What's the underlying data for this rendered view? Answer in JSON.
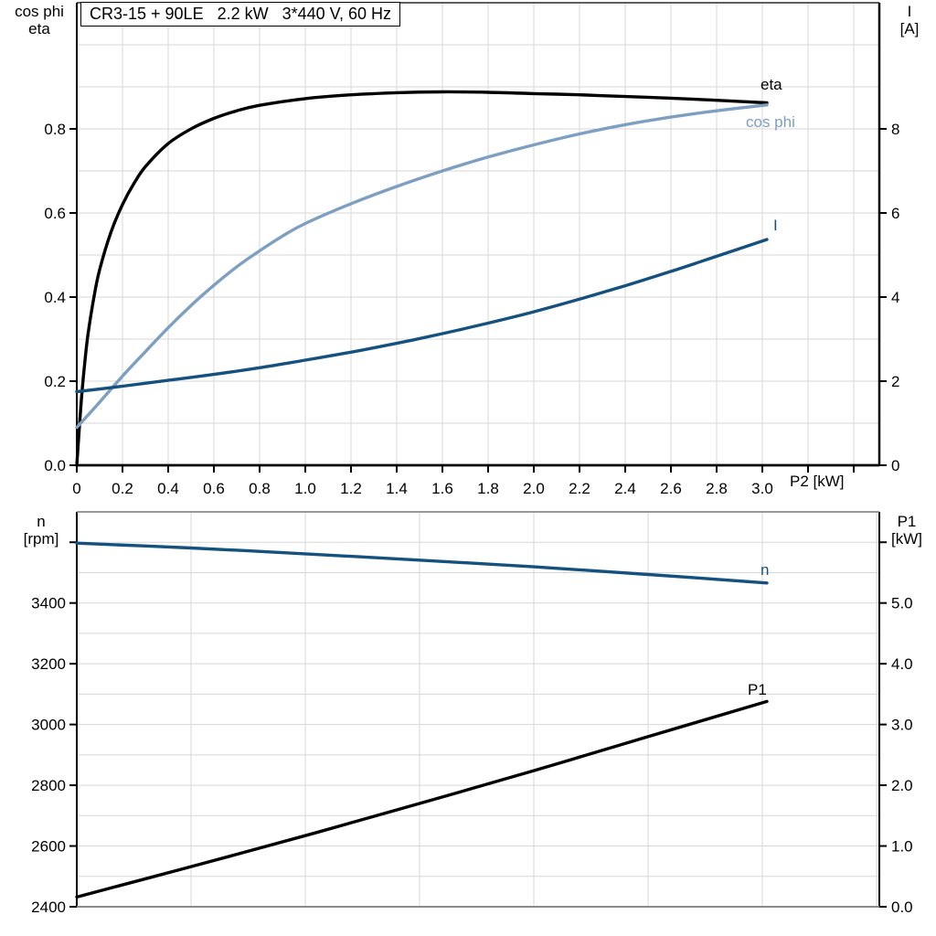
{
  "title_box": {
    "text": "CR3-15 + 90LE   2.2 kW   3*440 V, 60 Hz"
  },
  "colors": {
    "black": "#000000",
    "light_blue": "#7d9fc1",
    "dark_blue": "#15517f",
    "grid": "#d7d7d7",
    "frame": "#000000",
    "frame_gray": "#8a8a8a",
    "text": "#000000"
  },
  "chart_data": [
    {
      "id": "top",
      "type": "line",
      "title": "CR3-15 + 90LE   2.2 kW   3*440 V, 60 Hz",
      "x_axis": {
        "label": "P2 [kW]",
        "min": 0,
        "max": 3.512,
        "tick_values": [
          0,
          0.2,
          0.4,
          0.6,
          0.8,
          1.0,
          1.2,
          1.4,
          1.6,
          1.8,
          2.0,
          2.2,
          2.4,
          2.6,
          2.8,
          3.0,
          3.2,
          3.4
        ],
        "tick_labels": [
          "0",
          "0.2",
          "0.4",
          "0.6",
          "0.8",
          "1.0",
          "1.2",
          "1.4",
          "1.6",
          "1.8",
          "2.0",
          "2.2",
          "2.4",
          "2.6",
          "2.8",
          "3.0",
          "",
          ""
        ],
        "grid_step": 0.2
      },
      "left_axis": {
        "name_lines": [
          "cos phi",
          "eta"
        ],
        "min": 0,
        "max": 1.1,
        "tick_values": [
          0,
          0.2,
          0.4,
          0.6,
          0.8
        ],
        "tick_labels": [
          "0.0",
          "0.2",
          "0.4",
          "0.6",
          "0.8"
        ],
        "grid_step": 0.1
      },
      "right_axis": {
        "name_lines": [
          "I",
          "[A]"
        ],
        "min": 0,
        "max": 11,
        "tick_values": [
          0,
          2,
          4,
          6,
          8
        ],
        "tick_labels": [
          "0",
          "2",
          "4",
          "6",
          "8"
        ]
      },
      "series": [
        {
          "name": "eta",
          "label": "eta",
          "axis": "left",
          "color": "black",
          "x": [
            0,
            0.01,
            0.02,
            0.035,
            0.05,
            0.075,
            0.1,
            0.15,
            0.2,
            0.25,
            0.3,
            0.4,
            0.5,
            0.6,
            0.7,
            0.8,
            1.0,
            1.2,
            1.4,
            1.6,
            1.8,
            2.0,
            2.2,
            2.4,
            2.6,
            2.8,
            3.02
          ],
          "y": [
            0,
            0.08,
            0.155,
            0.245,
            0.315,
            0.4,
            0.465,
            0.555,
            0.62,
            0.67,
            0.71,
            0.765,
            0.8,
            0.825,
            0.843,
            0.856,
            0.872,
            0.881,
            0.886,
            0.888,
            0.887,
            0.884,
            0.881,
            0.877,
            0.873,
            0.868,
            0.862
          ]
        },
        {
          "name": "cos phi",
          "label": "cos phi",
          "axis": "left",
          "color": "light_blue",
          "x": [
            0,
            0.1,
            0.2,
            0.3,
            0.4,
            0.5,
            0.6,
            0.7,
            0.8,
            0.9,
            1.0,
            1.2,
            1.4,
            1.6,
            1.8,
            2.0,
            2.2,
            2.4,
            2.6,
            2.8,
            3.02
          ],
          "y": [
            0.09,
            0.15,
            0.212,
            0.27,
            0.327,
            0.38,
            0.428,
            0.472,
            0.51,
            0.545,
            0.575,
            0.622,
            0.663,
            0.7,
            0.733,
            0.762,
            0.788,
            0.81,
            0.828,
            0.843,
            0.857
          ]
        },
        {
          "name": "I",
          "label": "I",
          "axis": "right",
          "color": "dark_blue",
          "x": [
            0,
            0.2,
            0.4,
            0.6,
            0.8,
            1.0,
            1.2,
            1.4,
            1.6,
            1.8,
            2.0,
            2.2,
            2.4,
            2.6,
            2.8,
            3.02
          ],
          "y": [
            1.75,
            1.88,
            2.02,
            2.16,
            2.32,
            2.5,
            2.69,
            2.9,
            3.13,
            3.38,
            3.65,
            3.95,
            4.27,
            4.61,
            4.97,
            5.37
          ]
        }
      ]
    },
    {
      "id": "bottom",
      "type": "line",
      "x_axis": {
        "label": "",
        "min": 0,
        "max": 3.512,
        "tick_values": [],
        "tick_labels": [],
        "grid_step": 0.5
      },
      "left_axis": {
        "name_lines": [
          "n",
          "[rpm]"
        ],
        "min": 2400,
        "max": 3700,
        "tick_values": [
          2400,
          2600,
          2800,
          3000,
          3200,
          3400,
          3600
        ],
        "tick_labels": [
          "2400",
          "2600",
          "2800",
          "3000",
          "3200",
          "3400",
          ""
        ],
        "grid_step": 100
      },
      "right_axis": {
        "name_lines": [
          "P1",
          "[kW]"
        ],
        "min": 0,
        "max": 6.5,
        "tick_values": [
          0,
          1,
          2,
          3,
          4,
          5,
          6
        ],
        "tick_labels": [
          "0.0",
          "1.0",
          "2.0",
          "3.0",
          "4.0",
          "5.0",
          ""
        ],
        "grid_step": 0.5
      },
      "series": [
        {
          "name": "n",
          "label": "n",
          "axis": "left",
          "color": "dark_blue",
          "x": [
            0,
            0.5,
            1.0,
            1.5,
            2.0,
            2.5,
            3.02
          ],
          "y": [
            3597,
            3581,
            3562,
            3541,
            3519,
            3494,
            3466
          ]
        },
        {
          "name": "P1",
          "label": "P1",
          "axis": "right",
          "color": "black",
          "x": [
            0,
            0.5,
            1.0,
            1.5,
            2.0,
            2.5,
            3.02
          ],
          "y": [
            0.16,
            0.66,
            1.17,
            1.7,
            2.24,
            2.8,
            3.38
          ]
        }
      ]
    }
  ]
}
